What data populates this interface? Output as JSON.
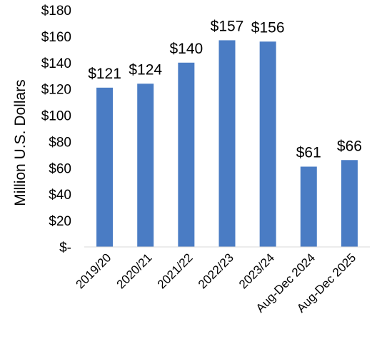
{
  "chart_data": {
    "type": "bar",
    "title": "",
    "xlabel": "",
    "ylabel": "Million U.S. Dollars",
    "categories": [
      "2019/20",
      "2020/21",
      "2021/22",
      "2022/23",
      "2023/24",
      "Aug-Dec 2024",
      "Aug-Dec 2025"
    ],
    "values": [
      121,
      124,
      140,
      157,
      156,
      61,
      66
    ],
    "data_labels": [
      "$121",
      "$124",
      "$140",
      "$157",
      "$156",
      "$61",
      "$66"
    ],
    "ylim": [
      0,
      180
    ],
    "y_ticks": [
      0,
      20,
      40,
      60,
      80,
      100,
      120,
      140,
      160,
      180
    ],
    "y_tick_labels": [
      "$-",
      "$20",
      "$40",
      "$60",
      "$80",
      "$100",
      "$120",
      "$140",
      "$160",
      "$180"
    ],
    "grid": false,
    "legend": "none",
    "bar_color": "#4a7cc4"
  }
}
